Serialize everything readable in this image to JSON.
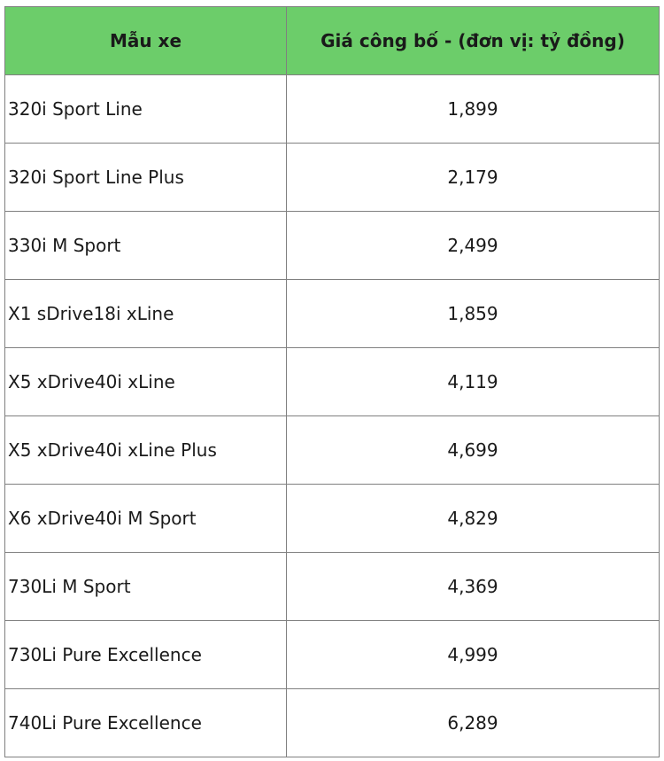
{
  "table": {
    "headers": {
      "model": "Mẫu xe",
      "price": "Giá công bố - (đơn vị: tỷ đồng)"
    },
    "rows": [
      {
        "model": "320i Sport Line",
        "price": "1,899"
      },
      {
        "model": "320i Sport Line Plus",
        "price": "2,179"
      },
      {
        "model": "330i M Sport",
        "price": "2,499"
      },
      {
        "model": "X1 sDrive18i xLine",
        "price": "1,859"
      },
      {
        "model": "X5 xDrive40i xLine",
        "price": "4,119"
      },
      {
        "model": "X5 xDrive40i xLine Plus",
        "price": "4,699"
      },
      {
        "model": "X6 xDrive40i M Sport",
        "price": "4,829"
      },
      {
        "model": "730Li M Sport",
        "price": "4,369"
      },
      {
        "model": "730Li Pure Excellence",
        "price": "4,999"
      },
      {
        "model": "740Li Pure Excellence",
        "price": "6,289"
      }
    ]
  },
  "colors": {
    "header_bg": "#6ccd6a",
    "border": "#808080"
  }
}
